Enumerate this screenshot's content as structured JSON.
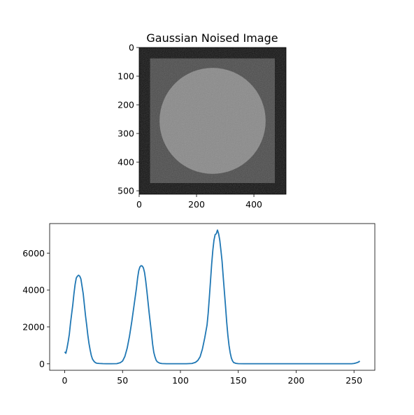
{
  "chart_data": [
    {
      "type": "image",
      "title": "Gaussian Noised Image",
      "xlim": [
        0,
        512
      ],
      "ylim": [
        512,
        0
      ],
      "xticks": [
        "0",
        "200",
        "400"
      ],
      "yticks": [
        "0",
        "100",
        "200",
        "300",
        "400",
        "500"
      ],
      "image": {
        "background_color": "#111111",
        "square": {
          "x0": 38,
          "x1": 473,
          "y0": 38,
          "y1": 473,
          "color": "#4b4b4b"
        },
        "circle": {
          "cx": 256,
          "cy": 256,
          "r": 185,
          "color": "#898989"
        },
        "noise": "gaussian"
      }
    },
    {
      "type": "line",
      "title": "",
      "xlabel": "",
      "ylabel": "",
      "xlim": [
        -13,
        268
      ],
      "ylim": [
        -350,
        7600
      ],
      "xticks": [
        "0",
        "50",
        "100",
        "150",
        "200",
        "250"
      ],
      "yticks": [
        "0",
        "2000",
        "4000",
        "6000"
      ],
      "series": [
        {
          "color": "#1f77b4",
          "x": [
            0,
            1,
            2,
            3,
            4,
            5,
            6,
            7,
            8,
            9,
            10,
            11,
            12,
            13,
            14,
            15,
            16,
            17,
            18,
            19,
            20,
            21,
            22,
            23,
            24,
            25,
            26,
            27,
            28,
            30,
            33,
            36,
            40,
            45,
            48,
            50,
            52,
            54,
            56,
            58,
            60,
            62,
            63,
            64,
            65,
            66,
            67,
            68,
            69,
            70,
            71,
            72,
            73,
            74,
            75,
            76,
            77,
            78,
            79,
            80,
            82,
            84,
            88,
            95,
            105,
            110,
            113,
            115,
            117,
            119,
            121,
            123,
            124,
            125,
            126,
            127,
            128,
            129,
            130,
            131,
            132,
            133,
            134,
            135,
            136,
            137,
            138,
            139,
            140,
            141,
            142,
            143,
            144,
            145,
            146,
            148,
            150,
            155,
            160,
            180,
            200,
            220,
            240,
            248,
            250,
            252,
            254,
            255
          ],
          "y": [
            650,
            570,
            850,
            1200,
            1600,
            2200,
            2700,
            3200,
            3800,
            4300,
            4650,
            4750,
            4800,
            4750,
            4600,
            4200,
            3800,
            3200,
            2600,
            2100,
            1550,
            1100,
            750,
            450,
            260,
            160,
            90,
            50,
            30,
            20,
            10,
            5,
            5,
            10,
            60,
            150,
            400,
            850,
            1500,
            2300,
            3200,
            4100,
            4650,
            5050,
            5250,
            5320,
            5300,
            5200,
            4950,
            4500,
            3950,
            3350,
            2750,
            2200,
            1650,
            1050,
            620,
            380,
            200,
            110,
            40,
            15,
            5,
            5,
            5,
            20,
            80,
            180,
            380,
            800,
            1400,
            2100,
            2750,
            3600,
            4500,
            5400,
            6150,
            6700,
            7000,
            7050,
            7250,
            7050,
            6700,
            6150,
            5550,
            4700,
            3900,
            3100,
            2250,
            1550,
            1000,
            600,
            320,
            160,
            70,
            25,
            10,
            5,
            5,
            5,
            5,
            5,
            5,
            5,
            20,
            50,
            100,
            150
          ]
        }
      ]
    }
  ]
}
